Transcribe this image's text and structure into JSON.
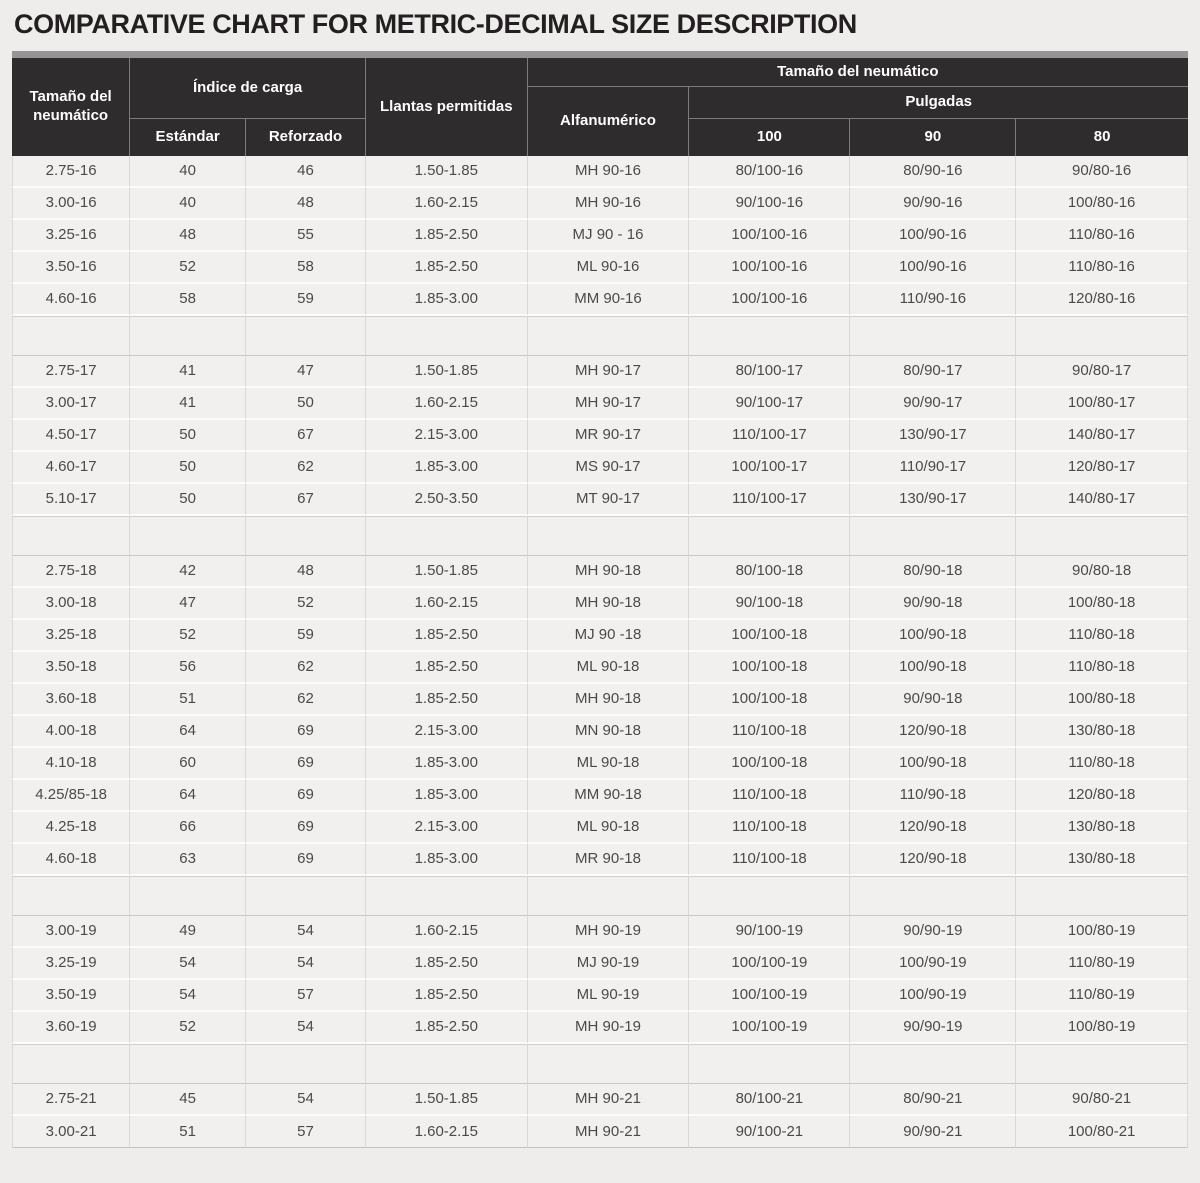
{
  "title": "COMPARATIVE CHART FOR METRIC-DECIMAL SIZE DESCRIPTION",
  "colors": {
    "page_bg": "#eeedeb",
    "title_text": "#231f20",
    "accent_bar": "#959595",
    "header_bg": "#2e2c2d",
    "header_text": "#ffffff",
    "row_bg": "#f1f0ee",
    "body_text": "#4b4a48"
  },
  "chart_data": {
    "type": "table",
    "title": "COMPARATIVE CHART FOR METRIC-DECIMAL SIZE DESCRIPTION",
    "header": {
      "tire_size_left": "Tamaño del neumático",
      "load_index": "Índice de carga",
      "standard": "Estándar",
      "reinforced": "Reforzado",
      "rims_allowed": "Llantas permitidas",
      "tire_size_right": "Tamaño del neumático",
      "alphanumeric": "Alfanumérico",
      "inches": "Pulgadas",
      "inch_100": "100",
      "inch_90": "90",
      "inch_80": "80"
    },
    "column_keys": [
      "tire_size",
      "load_standard",
      "load_reinforced",
      "rims",
      "alphanumeric",
      "inch_100",
      "inch_90",
      "inch_80"
    ],
    "groups": [
      [
        [
          "2.75-16",
          "40",
          "46",
          "1.50-1.85",
          "MH 90-16",
          "80/100-16",
          "80/90-16",
          "90/80-16"
        ],
        [
          "3.00-16",
          "40",
          "48",
          "1.60-2.15",
          "MH 90-16",
          "90/100-16",
          "90/90-16",
          "100/80-16"
        ],
        [
          "3.25-16",
          "48",
          "55",
          "1.85-2.50",
          "MJ 90 - 16",
          "100/100-16",
          "100/90-16",
          "110/80-16"
        ],
        [
          "3.50-16",
          "52",
          "58",
          "1.85-2.50",
          "ML 90-16",
          "100/100-16",
          "100/90-16",
          "110/80-16"
        ],
        [
          "4.60-16",
          "58",
          "59",
          "1.85-3.00",
          "MM 90-16",
          "100/100-16",
          "110/90-16",
          "120/80-16"
        ]
      ],
      [
        [
          "2.75-17",
          "41",
          "47",
          "1.50-1.85",
          "MH 90-17",
          "80/100-17",
          "80/90-17",
          "90/80-17"
        ],
        [
          "3.00-17",
          "41",
          "50",
          "1.60-2.15",
          "MH 90-17",
          "90/100-17",
          "90/90-17",
          "100/80-17"
        ],
        [
          "4.50-17",
          "50",
          "67",
          "2.15-3.00",
          "MR 90-17",
          "110/100-17",
          "130/90-17",
          "140/80-17"
        ],
        [
          "4.60-17",
          "50",
          "62",
          "1.85-3.00",
          "MS 90-17",
          "100/100-17",
          "110/90-17",
          "120/80-17"
        ],
        [
          "5.10-17",
          "50",
          "67",
          "2.50-3.50",
          "MT 90-17",
          "110/100-17",
          "130/90-17",
          "140/80-17"
        ]
      ],
      [
        [
          "2.75-18",
          "42",
          "48",
          "1.50-1.85",
          "MH 90-18",
          "80/100-18",
          "80/90-18",
          "90/80-18"
        ],
        [
          "3.00-18",
          "47",
          "52",
          "1.60-2.15",
          "MH 90-18",
          "90/100-18",
          "90/90-18",
          "100/80-18"
        ],
        [
          "3.25-18",
          "52",
          "59",
          "1.85-2.50",
          "MJ 90 -18",
          "100/100-18",
          "100/90-18",
          "110/80-18"
        ],
        [
          "3.50-18",
          "56",
          "62",
          "1.85-2.50",
          "ML 90-18",
          "100/100-18",
          "100/90-18",
          "110/80-18"
        ],
        [
          "3.60-18",
          "51",
          "62",
          "1.85-2.50",
          "MH 90-18",
          "100/100-18",
          "90/90-18",
          "100/80-18"
        ],
        [
          "4.00-18",
          "64",
          "69",
          "2.15-3.00",
          "MN 90-18",
          "110/100-18",
          "120/90-18",
          "130/80-18"
        ],
        [
          "4.10-18",
          "60",
          "69",
          "1.85-3.00",
          "ML 90-18",
          "100/100-18",
          "100/90-18",
          "110/80-18"
        ],
        [
          "4.25/85-18",
          "64",
          "69",
          "1.85-3.00",
          "MM 90-18",
          "110/100-18",
          "110/90-18",
          "120/80-18"
        ],
        [
          "4.25-18",
          "66",
          "69",
          "2.15-3.00",
          "ML 90-18",
          "110/100-18",
          "120/90-18",
          "130/80-18"
        ],
        [
          "4.60-18",
          "63",
          "69",
          "1.85-3.00",
          "MR 90-18",
          "110/100-18",
          "120/90-18",
          "130/80-18"
        ]
      ],
      [
        [
          "3.00-19",
          "49",
          "54",
          "1.60-2.15",
          "MH 90-19",
          "90/100-19",
          "90/90-19",
          "100/80-19"
        ],
        [
          "3.25-19",
          "54",
          "54",
          "1.85-2.50",
          "MJ 90-19",
          "100/100-19",
          "100/90-19",
          "110/80-19"
        ],
        [
          "3.50-19",
          "54",
          "57",
          "1.85-2.50",
          "ML 90-19",
          "100/100-19",
          "100/90-19",
          "110/80-19"
        ],
        [
          "3.60-19",
          "52",
          "54",
          "1.85-2.50",
          "MH 90-19",
          "100/100-19",
          "90/90-19",
          "100/80-19"
        ]
      ],
      [
        [
          "2.75-21",
          "45",
          "54",
          "1.50-1.85",
          "MH 90-21",
          "80/100-21",
          "80/90-21",
          "90/80-21"
        ],
        [
          "3.00-21",
          "51",
          "57",
          "1.60-2.15",
          "MH 90-21",
          "90/100-21",
          "90/90-21",
          "100/80-21"
        ]
      ]
    ]
  }
}
